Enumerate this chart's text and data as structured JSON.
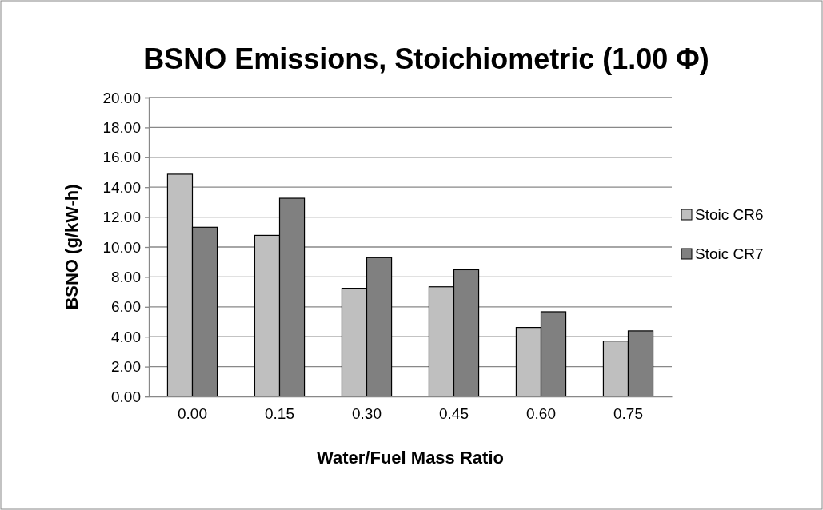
{
  "chart_data": {
    "type": "bar",
    "title": "BSNO Emissions, Stoichiometric (1.00 Φ)",
    "xlabel": "Water/Fuel Mass Ratio",
    "ylabel": "BSNO (g/kW-h)",
    "categories": [
      "0.00",
      "0.15",
      "0.30",
      "0.45",
      "0.60",
      "0.75"
    ],
    "series": [
      {
        "name": "Stoic CR6",
        "color": "#bfbfbf",
        "values": [
          14.87,
          10.78,
          7.24,
          7.34,
          4.62,
          3.71
        ]
      },
      {
        "name": "Stoic CR7",
        "color": "#808080",
        "values": [
          11.32,
          13.26,
          9.29,
          8.48,
          5.67,
          4.39
        ]
      }
    ],
    "ylim": [
      0,
      20
    ],
    "yticks": [
      {
        "value": 0,
        "label": "0.00"
      },
      {
        "value": 2,
        "label": "2.00"
      },
      {
        "value": 4,
        "label": "4.00"
      },
      {
        "value": 6,
        "label": "6.00"
      },
      {
        "value": 8,
        "label": "8.00"
      },
      {
        "value": 10,
        "label": "10.00"
      },
      {
        "value": 12,
        "label": "12.00"
      },
      {
        "value": 14,
        "label": "14.00"
      },
      {
        "value": 16,
        "label": "16.00"
      },
      {
        "value": 18,
        "label": "18.00"
      },
      {
        "value": 20,
        "label": "20.00"
      }
    ],
    "grid": "y",
    "legend": "right"
  }
}
